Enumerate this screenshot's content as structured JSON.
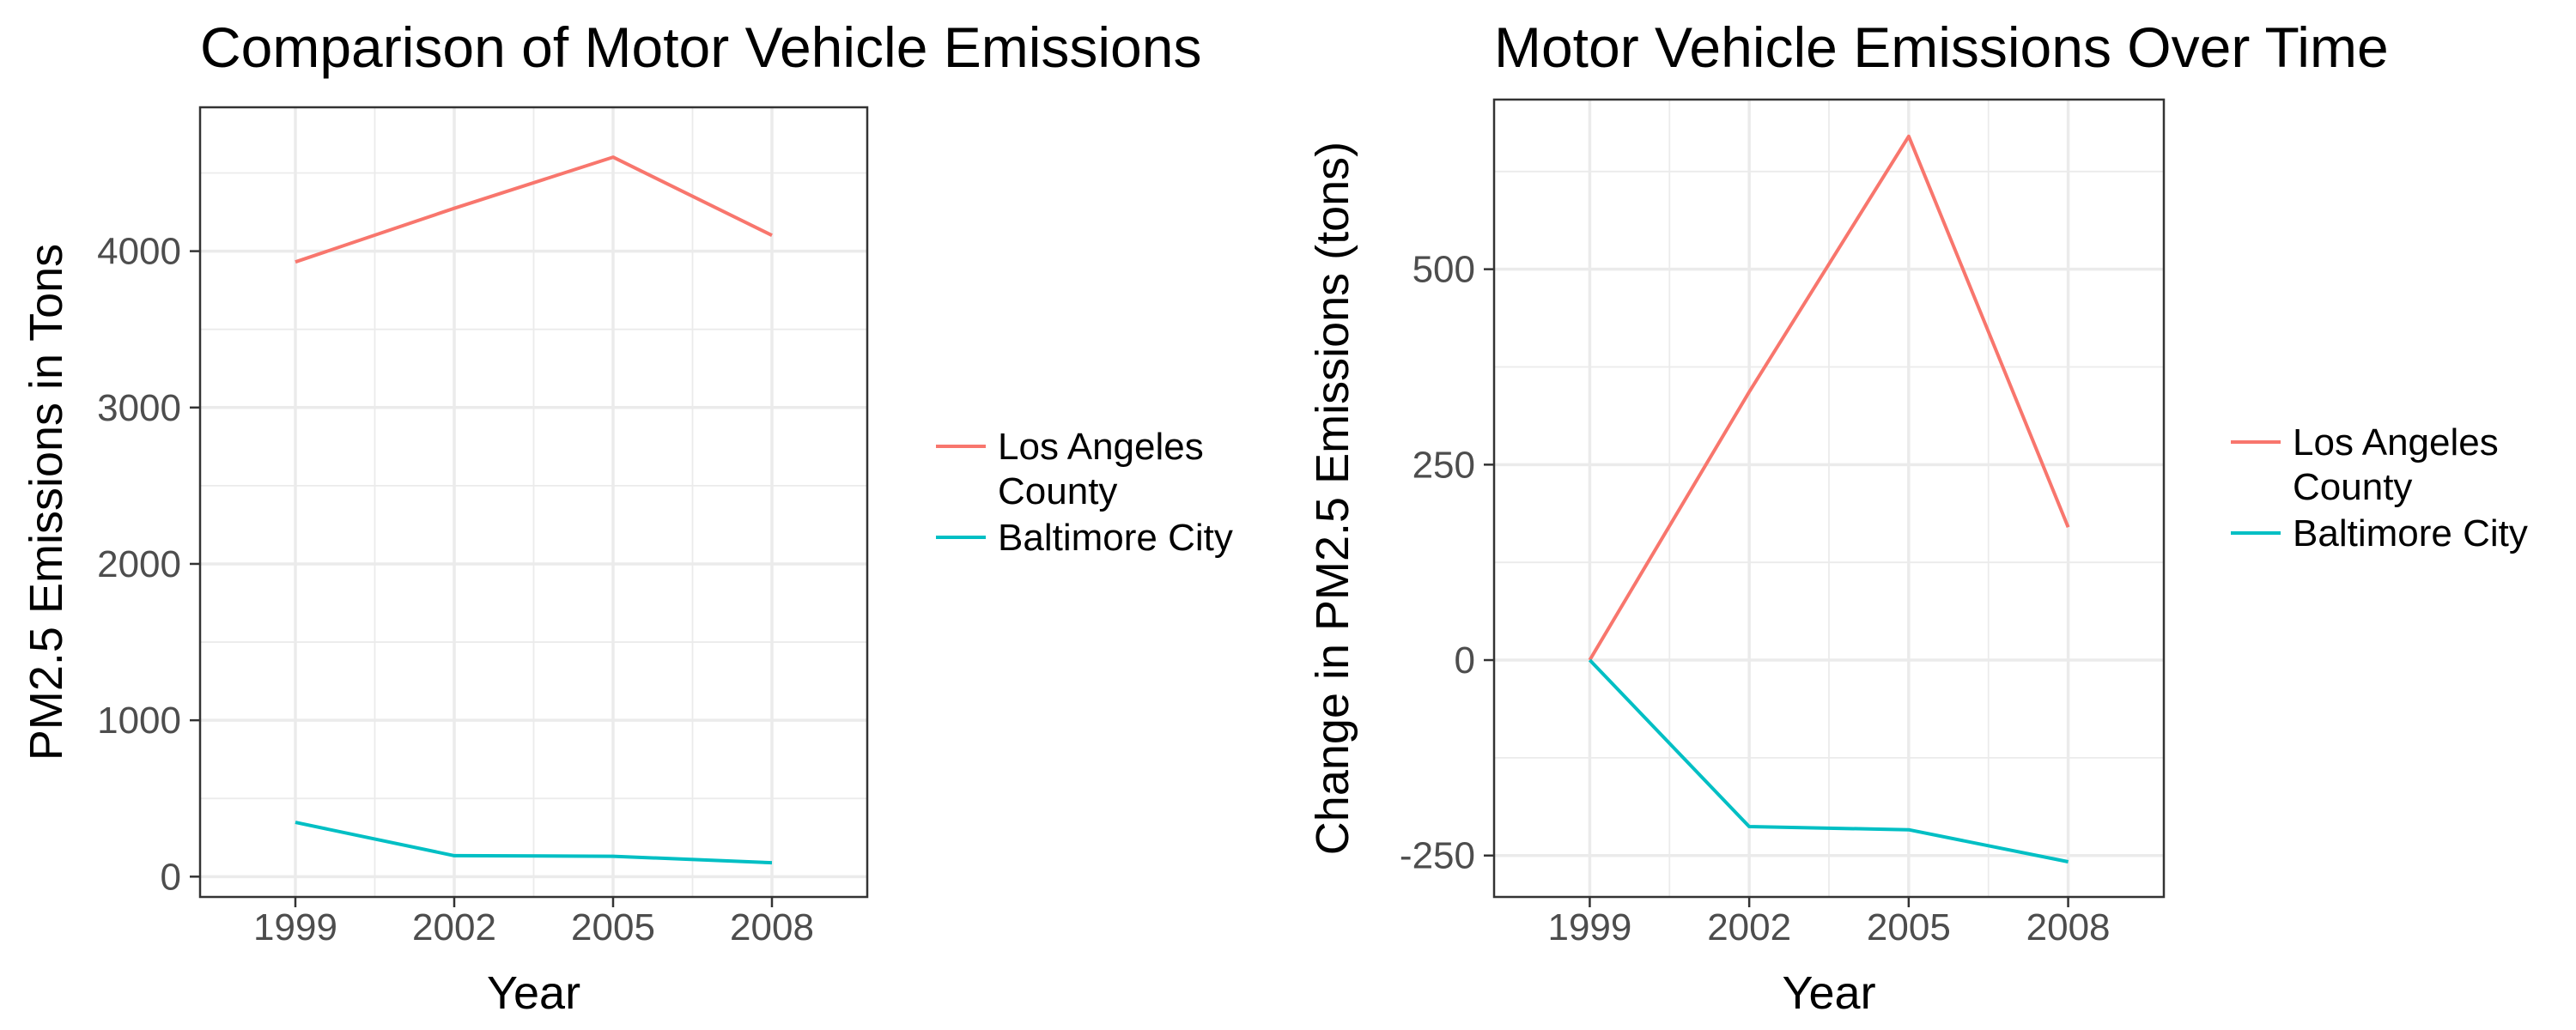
{
  "chart_data": [
    {
      "type": "line",
      "title": "Comparison of Motor Vehicle Emissions",
      "xlabel": "Year",
      "ylabel": "PM2.5 Emissions in Tons",
      "x": [
        1999,
        2002,
        2005,
        2008
      ],
      "x_ticks": [
        "1999",
        "2002",
        "2005",
        "2008"
      ],
      "xlim": [
        1997.2,
        2009.8
      ],
      "ylim": [
        -130,
        4920
      ],
      "y_ticks": [
        0,
        1000,
        2000,
        3000,
        4000
      ],
      "y_tick_labels": [
        "0",
        "1000",
        "2000",
        "3000",
        "4000"
      ],
      "grid": true,
      "legend_position": "right",
      "series": [
        {
          "name": "Los Angeles County",
          "legend_lines": [
            "Los Angeles",
            "County"
          ],
          "color": "#F8766D",
          "values": [
            3931,
            4274,
            4601,
            4101
          ]
        },
        {
          "name": "Baltimore City",
          "legend_lines": [
            "Baltimore City"
          ],
          "color": "#00BFC4",
          "values": [
            347,
            134,
            130,
            89
          ]
        }
      ]
    },
    {
      "type": "line",
      "title": "Motor Vehicle Emissions Over Time",
      "xlabel": "Year",
      "ylabel": "Change in PM2.5 Emissions (tons)",
      "x": [
        1999,
        2002,
        2005,
        2008
      ],
      "x_ticks": [
        "1999",
        "2002",
        "2005",
        "2008"
      ],
      "xlim": [
        1997.2,
        2009.8
      ],
      "ylim": [
        -303,
        717
      ],
      "y_ticks": [
        -250,
        0,
        250,
        500
      ],
      "y_tick_labels": [
        "-250",
        "0",
        "250",
        "500"
      ],
      "grid": true,
      "legend_position": "right",
      "series": [
        {
          "name": "Los Angeles County",
          "legend_lines": [
            "Los Angeles",
            "County"
          ],
          "color": "#F8766D",
          "values": [
            0,
            343,
            670,
            170
          ]
        },
        {
          "name": "Baltimore City",
          "legend_lines": [
            "Baltimore City"
          ],
          "color": "#00BFC4",
          "values": [
            0,
            -213,
            -217,
            -258
          ]
        }
      ]
    }
  ]
}
